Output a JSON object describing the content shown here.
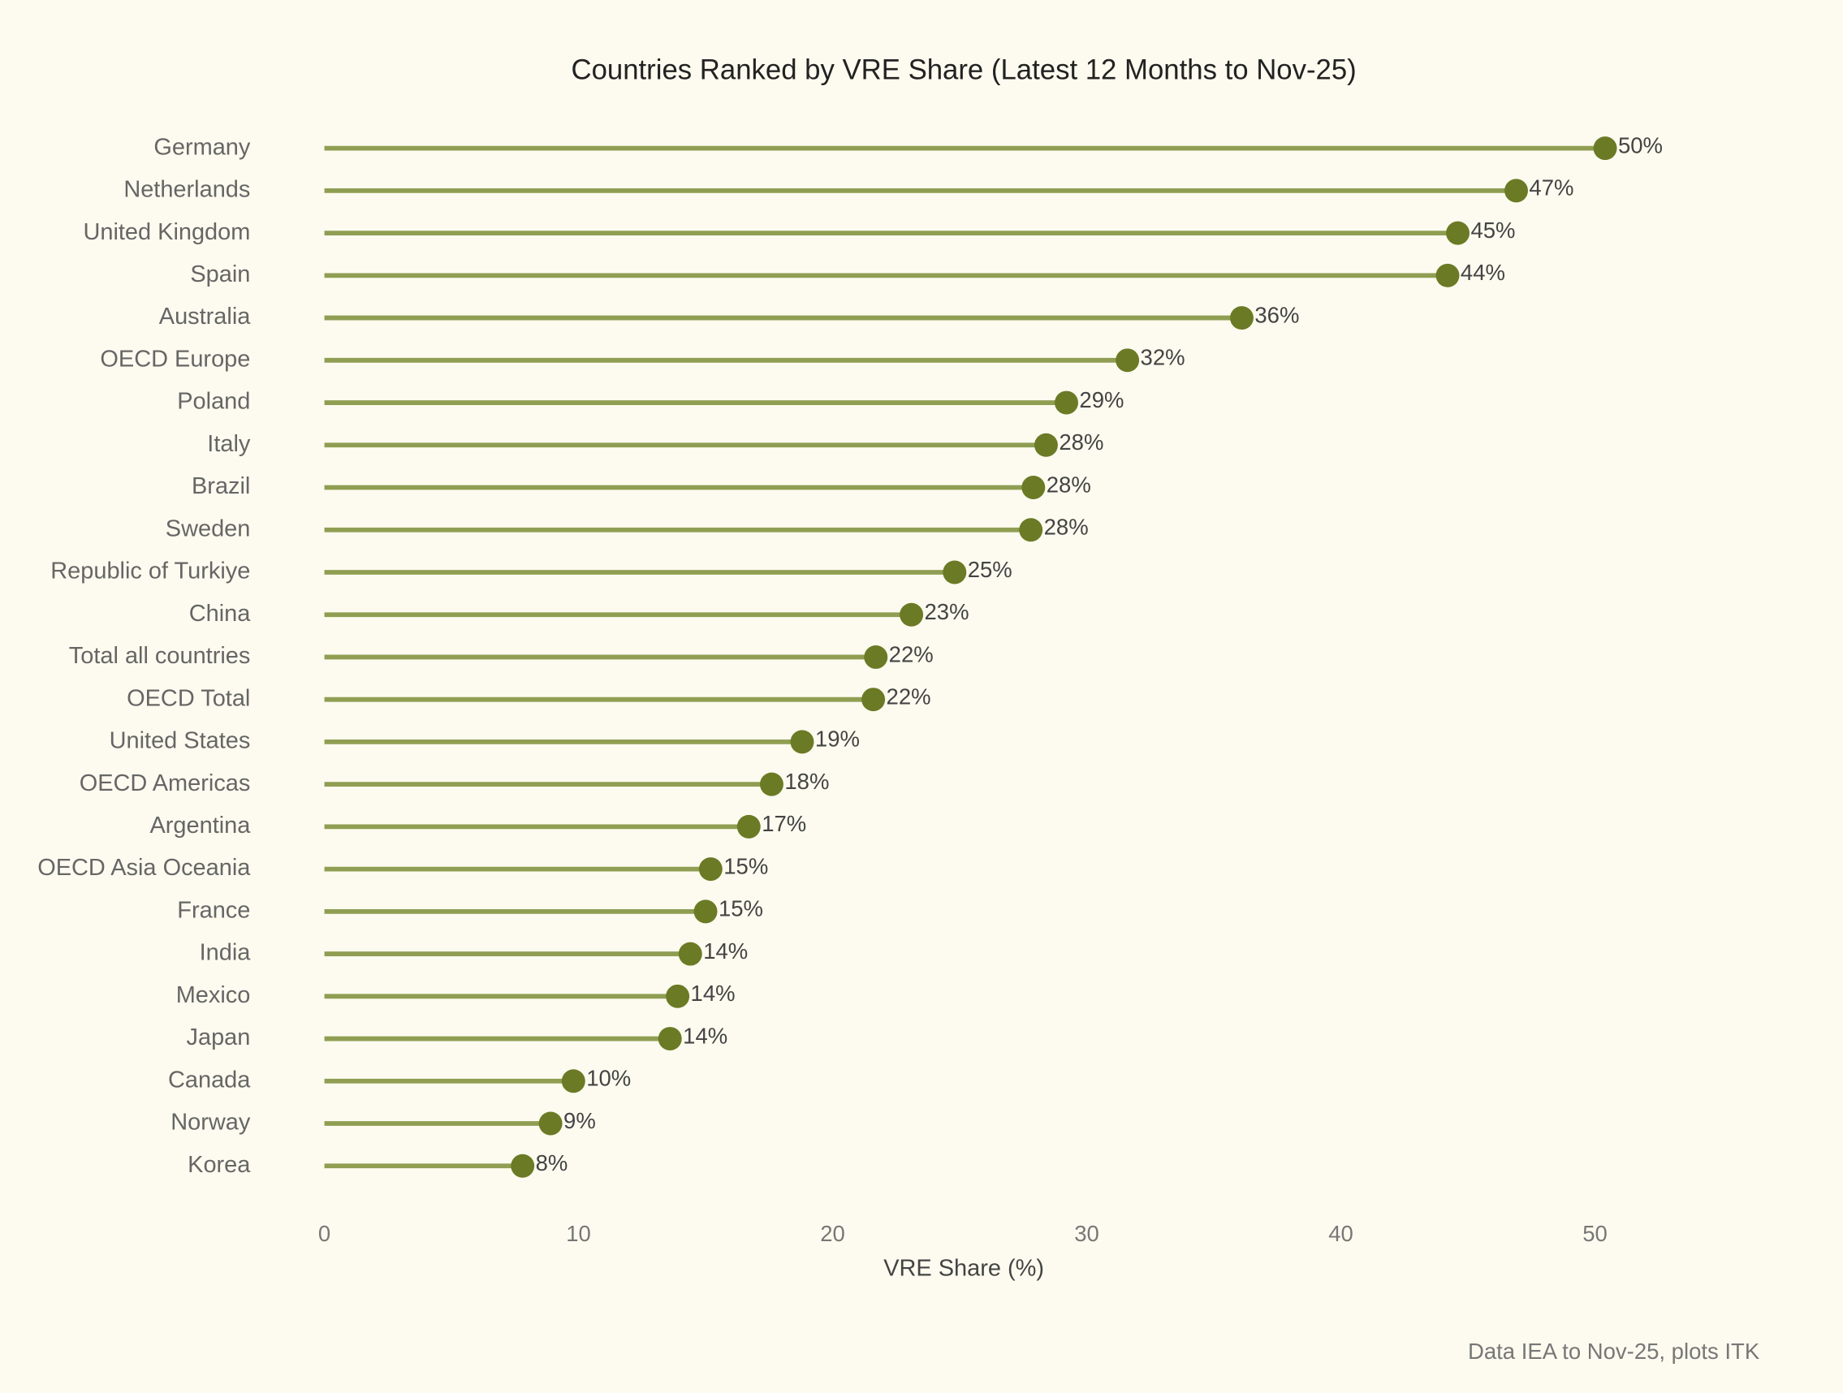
{
  "chart_data": {
    "type": "lollipop",
    "title": "Countries Ranked by VRE Share (Latest 12 Months to Nov-25)",
    "x_label": "VRE Share (%)",
    "note": "Data IEA to Nov-25, plots ITK",
    "categories": [
      "Germany",
      "Netherlands",
      "United Kingdom",
      "Spain",
      "Australia",
      "OECD Europe",
      "Poland",
      "Italy",
      "Brazil",
      "Sweden",
      "Republic of Turkiye",
      "China",
      "Total all countries",
      "OECD Total",
      "United States",
      "OECD Americas",
      "Argentina",
      "OECD Asia Oceania",
      "France",
      "India",
      "Mexico",
      "Japan",
      "Canada",
      "Norway",
      "Korea"
    ],
    "values": [
      50.4,
      46.9,
      44.6,
      44.2,
      36.1,
      31.6,
      29.2,
      28.4,
      27.9,
      27.8,
      24.8,
      23.1,
      21.7,
      21.6,
      18.8,
      17.6,
      16.7,
      15.2,
      15.0,
      14.4,
      13.9,
      13.6,
      9.8,
      8.9,
      7.8
    ],
    "value_labels": [
      "50%",
      "47%",
      "45%",
      "44%",
      "36%",
      "32%",
      "29%",
      "28%",
      "28%",
      "28%",
      "25%",
      "23%",
      "22%",
      "22%",
      "19%",
      "18%",
      "17%",
      "15%",
      "15%",
      "14%",
      "14%",
      "14%",
      "10%",
      "9%",
      "8%"
    ],
    "line_color": "#8f9e52",
    "color": "#6b7a25",
    "xlim": [
      0,
      55
    ],
    "xticks": [
      0,
      10,
      20,
      30,
      40,
      50
    ],
    "grid": false
  }
}
